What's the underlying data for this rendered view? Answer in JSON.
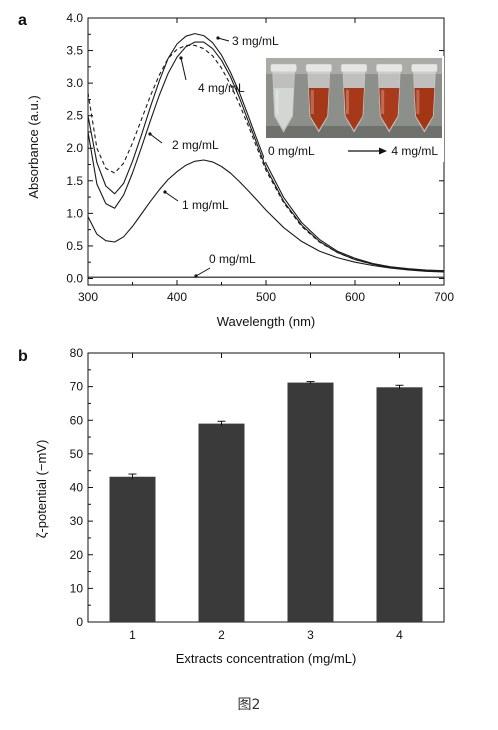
{
  "caption": "图2",
  "chart_data": [
    {
      "type": "line",
      "panel_label": "a",
      "xlabel": "Wavelength (nm)",
      "ylabel": "Absorbance (a.u.)",
      "xlim": [
        300,
        700
      ],
      "ylim": [
        -0.1,
        4.0
      ],
      "x_ticks": [
        300,
        400,
        500,
        600,
        700
      ],
      "y_ticks": [
        0.0,
        0.5,
        1.0,
        1.5,
        2.0,
        2.5,
        3.0,
        3.5,
        4.0
      ],
      "x_tick_labels": [
        "300",
        "400",
        "500",
        "600",
        "700"
      ],
      "y_tick_labels": [
        "0.0",
        "0.5",
        "1.0",
        "1.5",
        "2.0",
        "2.5",
        "3.0",
        "3.5",
        "4.0"
      ],
      "grid": false,
      "x": [
        300,
        310,
        320,
        330,
        340,
        350,
        360,
        370,
        380,
        390,
        400,
        410,
        420,
        430,
        440,
        450,
        460,
        470,
        480,
        490,
        500,
        520,
        540,
        560,
        580,
        600,
        620,
        640,
        660,
        680,
        700
      ],
      "series": [
        {
          "name": "0 mg/mL",
          "style": "solid",
          "values": [
            0.02,
            0.02,
            0.02,
            0.02,
            0.02,
            0.02,
            0.02,
            0.02,
            0.02,
            0.02,
            0.02,
            0.02,
            0.02,
            0.02,
            0.02,
            0.02,
            0.02,
            0.02,
            0.02,
            0.02,
            0.02,
            0.02,
            0.02,
            0.02,
            0.02,
            0.02,
            0.02,
            0.02,
            0.02,
            0.02,
            0.02
          ]
        },
        {
          "name": "1 mg/mL",
          "style": "solid",
          "values": [
            0.95,
            0.68,
            0.58,
            0.56,
            0.64,
            0.8,
            0.99,
            1.18,
            1.36,
            1.52,
            1.64,
            1.74,
            1.8,
            1.82,
            1.79,
            1.72,
            1.62,
            1.49,
            1.35,
            1.2,
            1.05,
            0.78,
            0.57,
            0.42,
            0.32,
            0.25,
            0.2,
            0.16,
            0.13,
            0.11,
            0.1
          ]
        },
        {
          "name": "2 mg/mL",
          "style": "solid",
          "values": [
            2.25,
            1.45,
            1.15,
            1.08,
            1.28,
            1.62,
            2.01,
            2.42,
            2.81,
            3.15,
            3.4,
            3.56,
            3.63,
            3.63,
            3.53,
            3.35,
            3.1,
            2.78,
            2.42,
            2.06,
            1.7,
            1.18,
            0.82,
            0.57,
            0.4,
            0.29,
            0.22,
            0.17,
            0.14,
            0.12,
            0.11
          ]
        },
        {
          "name": "3 mg/mL",
          "style": "solid",
          "values": [
            2.5,
            1.78,
            1.42,
            1.3,
            1.46,
            1.8,
            2.2,
            2.63,
            3.03,
            3.38,
            3.6,
            3.72,
            3.76,
            3.73,
            3.62,
            3.43,
            3.17,
            2.86,
            2.5,
            2.13,
            1.77,
            1.24,
            0.86,
            0.6,
            0.42,
            0.31,
            0.23,
            0.18,
            0.15,
            0.13,
            0.12
          ]
        },
        {
          "name": "4 mg/mL",
          "style": "dashed",
          "values": [
            2.85,
            2.0,
            1.69,
            1.62,
            1.77,
            2.08,
            2.44,
            2.8,
            3.12,
            3.38,
            3.52,
            3.58,
            3.58,
            3.53,
            3.42,
            3.23,
            2.98,
            2.68,
            2.35,
            2.0,
            1.66,
            1.16,
            0.8,
            0.56,
            0.4,
            0.29,
            0.22,
            0.17,
            0.14,
            0.12,
            0.11
          ]
        }
      ],
      "annotations": [
        "3 mg/mL",
        "4 mg/mL",
        "2 mg/mL",
        "1 mg/mL",
        "0 mg/mL"
      ],
      "inset": {
        "left_label": "0 mg/mL",
        "right_label": "4  mg/mL",
        "tube_colors": [
          "#d3d7d4",
          "#a53818",
          "#a8381a",
          "#aa3a1c",
          "#a43616"
        ]
      }
    },
    {
      "type": "bar",
      "panel_label": "b",
      "xlabel": "Extracts concentration (mg/mL)",
      "ylabel": "ζ-potential (−mV)",
      "categories": [
        "1",
        "2",
        "3",
        "4"
      ],
      "values": [
        43.2,
        59.0,
        71.2,
        69.8
      ],
      "errors": [
        0.8,
        0.7,
        0.3,
        0.6
      ],
      "ylim": [
        0,
        80
      ],
      "y_ticks": [
        0,
        10,
        20,
        30,
        40,
        50,
        60,
        70,
        80
      ],
      "y_tick_labels": [
        "0",
        "10",
        "20",
        "30",
        "40",
        "50",
        "60",
        "70",
        "80"
      ],
      "bar_color": "#3a3a3a",
      "grid": false
    }
  ]
}
